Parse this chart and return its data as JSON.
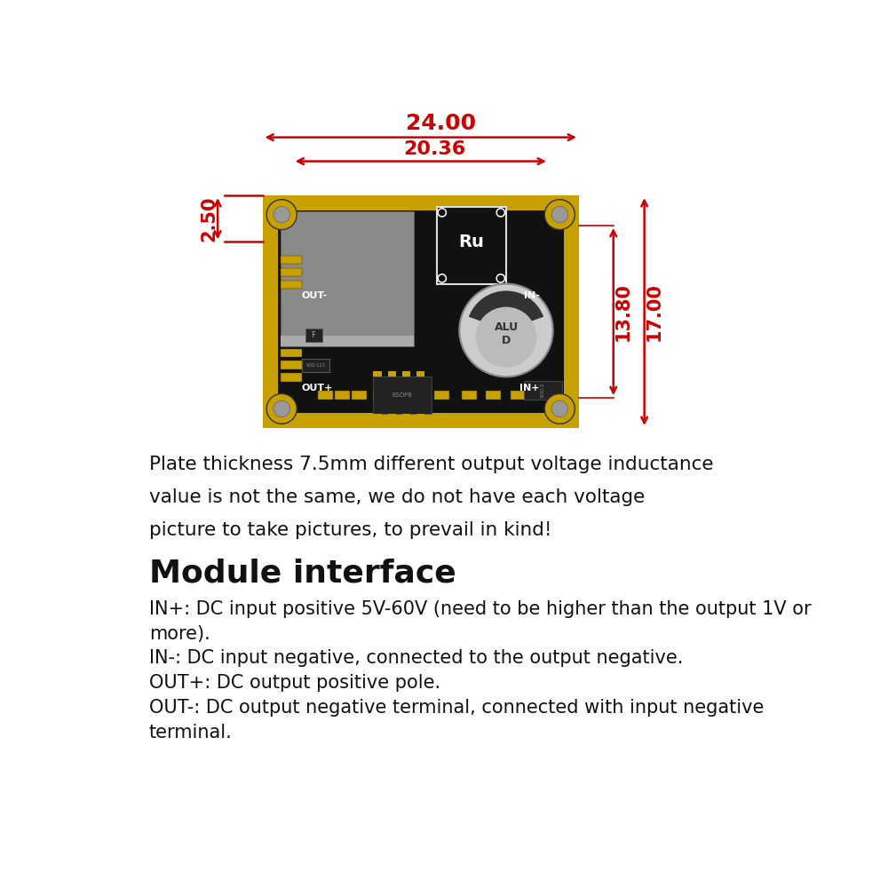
{
  "bg_color": "#ffffff",
  "red_color": "#cc0000",
  "yellow": "#c8a000",
  "black": "#1a1a1a",
  "gray_ic": "#888888",
  "dim_24": "24.00",
  "dim_2036": "20.36",
  "dim_250": "2.50",
  "dim_1380": "13.80",
  "dim_1700": "17.00",
  "plate_text_line1": "Plate thickness 7.5mm different output voltage inductance",
  "plate_text_line2": "value is not the same, we do not have each voltage",
  "plate_text_line3": "picture to take pictures, to prevail in kind!",
  "module_title": "Module interface",
  "in_plus": "IN+: DC input positive 5V-60V (need to be higher than the output 1V or",
  "in_plus2": "more).",
  "in_minus": "IN-: DC input negative, connected to the output negative.",
  "out_plus": "OUT+: DC output positive pole.",
  "out_minus": "OUT-: DC output negative terminal, connected with input negative",
  "out_minus2": "terminal."
}
